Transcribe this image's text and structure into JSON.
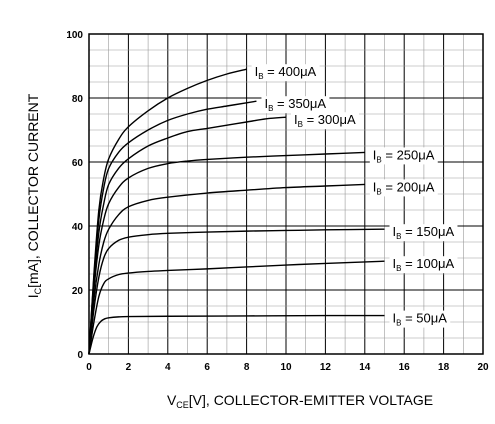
{
  "chart_data": {
    "type": "line",
    "xlabel": {
      "main": "V",
      "sub": "CE",
      "rest": "[V], COLLECTOR-EMITTER VOLTAGE"
    },
    "ylabel": {
      "main": "I",
      "sub": "C",
      "rest": "[mA], COLLECTOR CURRENT"
    },
    "xlim": [
      0,
      20
    ],
    "ylim": [
      0,
      100
    ],
    "xticks": [
      0,
      2,
      4,
      6,
      8,
      10,
      12,
      14,
      16,
      18,
      20
    ],
    "yticks": [
      0,
      20,
      40,
      60,
      80,
      100
    ],
    "grid": true,
    "series": [
      {
        "name": "400μA",
        "label_prefix": "I",
        "label_sub": "B",
        "label_value": "= 400μA",
        "x": [
          0,
          0.25,
          0.5,
          0.75,
          1,
          1.5,
          2,
          3,
          4,
          5,
          6,
          7,
          8
        ],
        "y": [
          0,
          25,
          45,
          55,
          61,
          67,
          71,
          76,
          80,
          83,
          85.5,
          87.5,
          89
        ]
      },
      {
        "name": "350μA",
        "label_prefix": "I",
        "label_sub": "B",
        "label_value": "= 350μA",
        "x": [
          0,
          0.25,
          0.5,
          0.75,
          1,
          1.5,
          2,
          3,
          4,
          5,
          6,
          7,
          8,
          8.5
        ],
        "y": [
          0,
          24,
          42,
          52,
          58,
          63,
          66,
          70,
          73,
          75,
          76.5,
          77.5,
          78.5,
          79
        ]
      },
      {
        "name": "300μA",
        "label_prefix": "I",
        "label_sub": "B",
        "label_value": "= 300μA",
        "x": [
          0,
          0.25,
          0.5,
          0.75,
          1,
          1.5,
          2,
          3,
          4,
          5,
          6,
          7,
          8,
          9,
          10
        ],
        "y": [
          0,
          22,
          38,
          47,
          53,
          58,
          61,
          65,
          67.5,
          69.5,
          70.5,
          71.5,
          72.5,
          73.5,
          74
        ]
      },
      {
        "name": "250μA",
        "label_prefix": "I",
        "label_sub": "B",
        "label_value": "= 250μA",
        "x": [
          0,
          0.25,
          0.5,
          0.75,
          1,
          1.5,
          2,
          3,
          4,
          5,
          6,
          8,
          10,
          12,
          14
        ],
        "y": [
          0,
          20,
          34,
          42,
          47,
          52,
          55,
          58,
          59.5,
          60.3,
          60.8,
          61.5,
          62,
          62.5,
          63
        ]
      },
      {
        "name": "200μA",
        "label_prefix": "I",
        "label_sub": "B",
        "label_value": "= 200μA",
        "x": [
          0,
          0.25,
          0.5,
          0.75,
          1,
          1.5,
          2,
          3,
          4,
          6,
          8,
          10,
          12,
          14
        ],
        "y": [
          0,
          17,
          28,
          35,
          39,
          43.5,
          46,
          48,
          49,
          50.3,
          51.2,
          52,
          52.5,
          53
        ]
      },
      {
        "name": "150μA",
        "label_prefix": "I",
        "label_sub": "B",
        "label_value": "= 150μA",
        "x": [
          0,
          0.25,
          0.5,
          0.75,
          1,
          1.5,
          2,
          3,
          4,
          6,
          8,
          10,
          12,
          15
        ],
        "y": [
          0,
          14,
          24,
          30,
          33,
          35.5,
          36.5,
          37.3,
          37.7,
          38.1,
          38.4,
          38.6,
          38.8,
          39
        ]
      },
      {
        "name": "100μA",
        "label_prefix": "I",
        "label_sub": "B",
        "label_value": "= 100μA",
        "x": [
          0,
          0.25,
          0.5,
          0.75,
          1,
          1.5,
          2,
          3,
          4,
          6,
          8,
          10,
          12,
          15
        ],
        "y": [
          0,
          10,
          18,
          22,
          23.5,
          24.8,
          25.3,
          25.8,
          26.1,
          26.6,
          27.2,
          27.8,
          28.3,
          29
        ]
      },
      {
        "name": "50μA",
        "label_prefix": "I",
        "label_sub": "B",
        "label_value": "= 50μA",
        "x": [
          0,
          0.2,
          0.4,
          0.6,
          0.8,
          1,
          1.5,
          2,
          4,
          8,
          12,
          15
        ],
        "y": [
          0,
          5,
          8.5,
          10.2,
          11,
          11.3,
          11.6,
          11.7,
          11.8,
          11.9,
          12,
          12
        ]
      }
    ]
  }
}
